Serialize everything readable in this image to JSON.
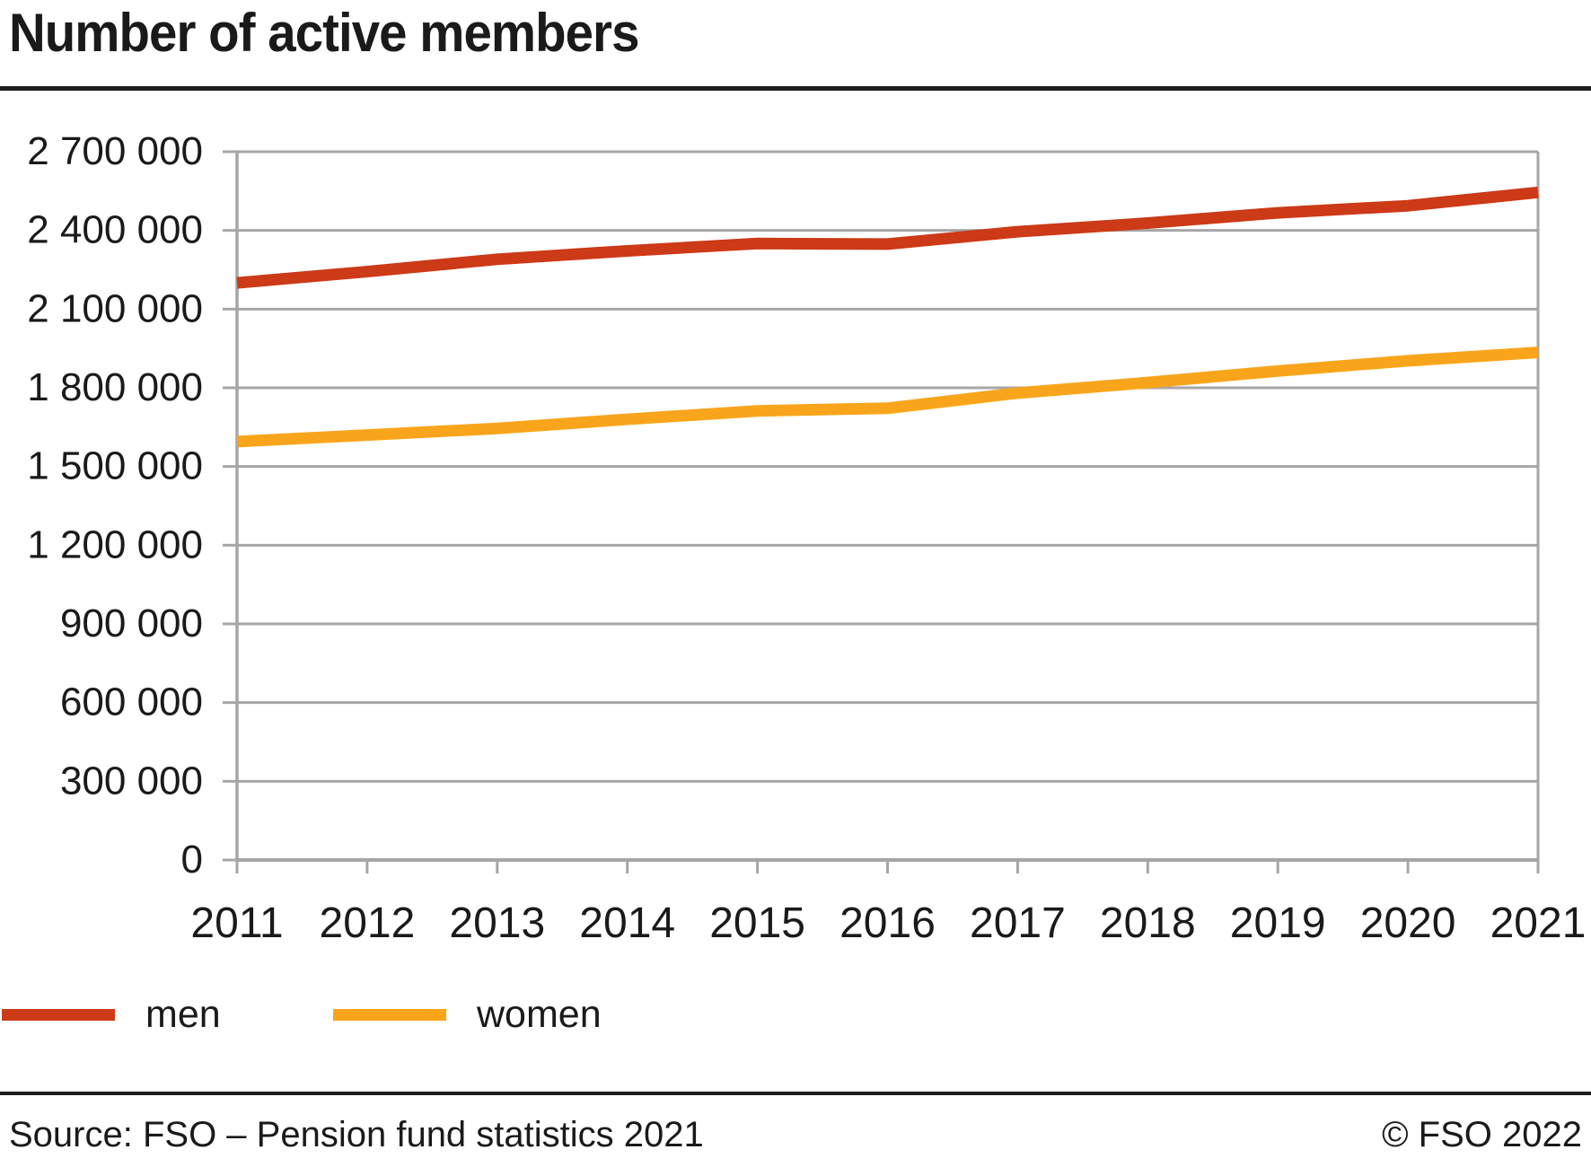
{
  "title": "Number of active members",
  "legend": {
    "items": [
      {
        "label": "men",
        "color": "#cc3a17"
      },
      {
        "label": "women",
        "color": "#f9a51b"
      }
    ]
  },
  "footer": {
    "source": "Source: FSO – Pension fund statistics 2021",
    "copyright": "© FSO 2022"
  },
  "chart_data": {
    "type": "line",
    "title": "Number of active members",
    "x": [
      2011,
      2012,
      2013,
      2014,
      2015,
      2016,
      2017,
      2018,
      2019,
      2020,
      2021
    ],
    "x_tick_labels": [
      "2011",
      "2012",
      "2013",
      "2014",
      "2015",
      "2016",
      "2017",
      "2018",
      "2019",
      "2020",
      "2021"
    ],
    "series": [
      {
        "name": "men",
        "color": "#cc3a17",
        "values": [
          2200000,
          2243000,
          2290000,
          2322000,
          2350000,
          2348000,
          2395000,
          2428000,
          2467000,
          2494000,
          2545000
        ]
      },
      {
        "name": "women",
        "color": "#f9a51b",
        "values": [
          1595000,
          1620000,
          1645000,
          1680000,
          1712000,
          1722000,
          1780000,
          1820000,
          1864000,
          1903000,
          1935000
        ]
      }
    ],
    "ylim": [
      0,
      2700000
    ],
    "yticks": [
      0,
      300000,
      600000,
      900000,
      1200000,
      1500000,
      1800000,
      2100000,
      2400000,
      2700000
    ],
    "ytick_labels": [
      "0",
      "300 000",
      "600 000",
      "900 000",
      "1 200 000",
      "1 500 000",
      "1 800 000",
      "2 100 000",
      "2 400 000",
      "2 700 000"
    ],
    "grid": "horizontal",
    "legend_position": "bottom",
    "axis_color": "#a6a6a6",
    "text_color": "#1a1a1a"
  }
}
